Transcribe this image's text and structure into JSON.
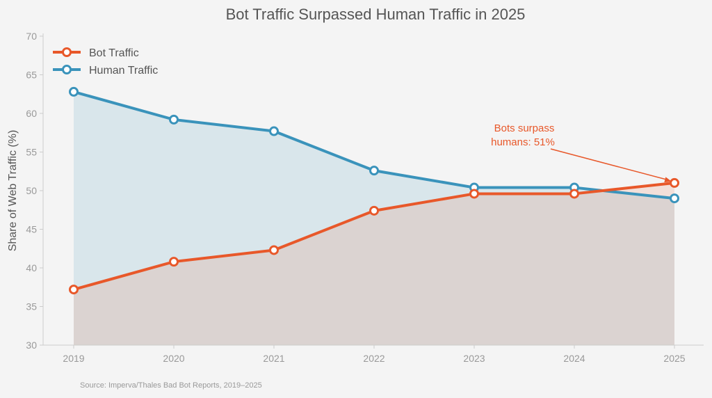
{
  "chart_data": {
    "type": "line",
    "title": "Bot Traffic Surpassed Human Traffic in 2025",
    "ylabel": "Share of Web Traffic (%)",
    "xlabel": "",
    "categories": [
      "2019",
      "2020",
      "2021",
      "2022",
      "2023",
      "2024",
      "2025"
    ],
    "ylim": [
      30,
      70
    ],
    "yticks": [
      30,
      35,
      40,
      45,
      50,
      55,
      60,
      65,
      70
    ],
    "grid": false,
    "legend": "top-left",
    "series": [
      {
        "name": "Bot Traffic",
        "color": "#e8582a",
        "values": [
          37.2,
          40.8,
          42.3,
          47.4,
          49.6,
          49.6,
          51.0
        ]
      },
      {
        "name": "Human Traffic",
        "color": "#3a93bb",
        "values": [
          62.8,
          59.2,
          57.7,
          52.6,
          50.4,
          50.4,
          49.0
        ]
      }
    ],
    "annotation": {
      "lines": [
        "Bots surpass",
        "humans: 51%"
      ],
      "x": "2025",
      "y": 51.0,
      "color": "#e8582a"
    },
    "source": "Source: Imperva/Thales Bad Bot Reports, 2019–2025"
  }
}
